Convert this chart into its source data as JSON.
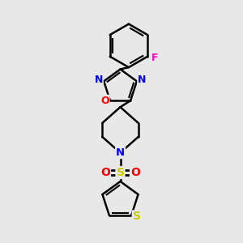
{
  "bg_color": "#e8e8e8",
  "bond_color": "#000000",
  "bond_width": 1.8,
  "figsize": [
    3.0,
    3.0
  ],
  "dpi": 100,
  "colors": {
    "N": "#0000ff",
    "O": "#ff0000",
    "F": "#ff00cc",
    "S_thi": "#cccc00",
    "S_sul": "#cccc00"
  }
}
